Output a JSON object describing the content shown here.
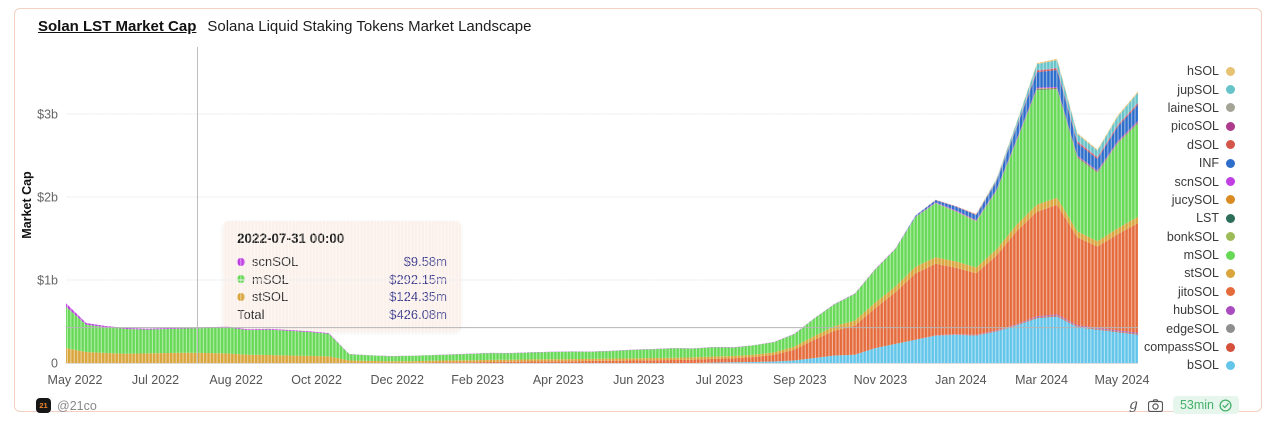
{
  "header": {
    "title": "Solan LST Market Cap",
    "subtitle": "Solana Liquid Staking Tokens Market Landscape"
  },
  "tooltip": {
    "title": "2022-07-31 00:00",
    "rows": [
      {
        "label": "scnSOL",
        "color": "#bf3fe3",
        "value": "$9.58m"
      },
      {
        "label": "mSOL",
        "color": "#67d957",
        "value": "$292.15m"
      },
      {
        "label": "stSOL",
        "color": "#d9a53c",
        "value": "$124.35m"
      }
    ],
    "total_label": "Total",
    "total_value": "$426.08m"
  },
  "footer": {
    "brand": "@21co",
    "logo_text": "21",
    "freshness": "53min"
  },
  "chart_data": {
    "type": "area",
    "stacked": true,
    "title": "Solan LST Market Cap",
    "subtitle": "Solana Liquid Staking Tokens Market Landscape",
    "ylabel": "Market Cap",
    "legend_position": "right",
    "grid": "horizontal-faint",
    "units": "USD millions",
    "ylim_m": [
      0,
      3800
    ],
    "y_ticks": [
      {
        "label": "$3b",
        "value": 3000
      },
      {
        "label": "$2b",
        "value": 2000
      },
      {
        "label": "$1b",
        "value": 1000
      },
      {
        "label": "0",
        "value": 0
      }
    ],
    "x_labels": [
      "May 2022",
      "Jul 2022",
      "Aug 2022",
      "Oct 2022",
      "Dec 2022",
      "Feb 2023",
      "Apr 2023",
      "Jun 2023",
      "Jul 2023",
      "Sep 2023",
      "Nov 2023",
      "Jan 2024",
      "Mar 2024",
      "May 2024"
    ],
    "x_range": [
      "2022-05-01",
      "2024-05-15"
    ],
    "n_points": 54,
    "crosshair": {
      "t": 6.5,
      "total_m": 426.08,
      "date": "2022-07-31 00:00"
    },
    "series_bottom_to_top": [
      {
        "name": "bSOL",
        "color": "#63c5ea",
        "from": 32,
        "values": [
          5,
          8,
          12,
          18,
          30,
          60,
          90,
          100,
          180,
          230,
          280,
          330,
          340,
          330,
          380,
          450,
          540,
          560,
          430,
          400,
          370,
          340
        ]
      },
      {
        "name": "compassSOL",
        "color": "#d5503a",
        "from": 43,
        "values": [
          2,
          3,
          4,
          5,
          6,
          8,
          9,
          9,
          8,
          8,
          9
        ]
      },
      {
        "name": "edgeSOL",
        "color": "#8e8e8e",
        "from": 43,
        "values": [
          1,
          2,
          3,
          4,
          5,
          6,
          7,
          7,
          6,
          6,
          7
        ]
      },
      {
        "name": "hubSOL",
        "color": "#aa4cc0",
        "from": 43,
        "values": [
          2,
          3,
          4,
          5,
          7,
          9,
          10,
          10,
          9,
          9,
          10
        ]
      },
      {
        "name": "jitoSOL",
        "color": "#e56b3c",
        "from": 18,
        "values": [
          5,
          8,
          10,
          12,
          15,
          18,
          20,
          22,
          25,
          28,
          30,
          33,
          36,
          40,
          45,
          50,
          60,
          80,
          130,
          220,
          300,
          350,
          480,
          620,
          800,
          860,
          800,
          740,
          900,
          1120,
          1260,
          1320,
          1060,
          980,
          1160,
          1320
        ]
      },
      {
        "name": "stSOL",
        "color": "#d9a53c",
        "from": 0,
        "values": [
          180,
          132,
          120,
          112,
          116,
          120,
          124,
          120,
          114,
          100,
          96,
          90,
          86,
          80,
          30,
          25,
          22,
          22,
          22,
          23,
          24,
          25,
          24,
          25,
          26,
          25,
          24,
          25,
          26,
          27,
          28,
          27,
          28,
          26,
          28,
          30,
          35,
          45,
          55,
          60,
          65,
          70,
          80,
          80,
          75,
          70,
          72,
          80,
          85,
          85,
          70,
          65,
          70,
          75
        ]
      },
      {
        "name": "mSOL",
        "color": "#67d957",
        "from": 0,
        "values": [
          500,
          330,
          310,
          298,
          286,
          290,
          292,
          302,
          312,
          296,
          306,
          298,
          288,
          272,
          76,
          66,
          60,
          63,
          66,
          70,
          76,
          82,
          78,
          84,
          86,
          90,
          86,
          92,
          102,
          106,
          112,
          106,
          112,
          102,
          112,
          122,
          152,
          212,
          262,
          322,
          400,
          452,
          600,
          650,
          600,
          552,
          700,
          1000,
          1380,
          1300,
          880,
          820,
          1020,
          1120
        ]
      },
      {
        "name": "bonkSOL",
        "color": "#9dbb57",
        "from": 43,
        "values": [
          1,
          2,
          3,
          4,
          5,
          6,
          7,
          7,
          6,
          6,
          7
        ]
      },
      {
        "name": "LST",
        "color": "#2c6e5a",
        "from": 43,
        "values": [
          2,
          3,
          4,
          5,
          6,
          8,
          9,
          9,
          8,
          8,
          9
        ]
      },
      {
        "name": "jucySOL",
        "color": "#d98b22",
        "from": 43,
        "values": [
          1,
          2,
          3,
          4,
          5,
          6,
          7,
          7,
          6,
          6,
          7
        ]
      },
      {
        "name": "scnSOL",
        "color": "#bf3fe3",
        "from": 0,
        "values": [
          40,
          20,
          15,
          12,
          11,
          10,
          9.6,
          10,
          10,
          9,
          9,
          9,
          8,
          8,
          3,
          3,
          2.5,
          2.5,
          2.5,
          2.5,
          3,
          3,
          3,
          3,
          3,
          3,
          3,
          3,
          3,
          3,
          3,
          3,
          3,
          3,
          3,
          3,
          4,
          4,
          5,
          5,
          6,
          6,
          7,
          8,
          8,
          9,
          9,
          10,
          11,
          11,
          10,
          10,
          11,
          12
        ]
      },
      {
        "name": "INF",
        "color": "#2e6ecb",
        "from": 42,
        "values": [
          10,
          25,
          45,
          60,
          95,
          140,
          185,
          205,
          150,
          140,
          175,
          195
        ]
      },
      {
        "name": "dSOL",
        "color": "#d4564a",
        "from": 43,
        "values": [
          2,
          3,
          5,
          7,
          9,
          12,
          14,
          14,
          12,
          12,
          14
        ]
      },
      {
        "name": "picoSOL",
        "color": "#ad3a8d",
        "from": 43,
        "values": [
          1,
          2,
          3,
          4,
          5,
          7,
          8,
          8,
          7,
          7,
          8
        ]
      },
      {
        "name": "laineSOL",
        "color": "#a3a396",
        "from": 43,
        "values": [
          1,
          2,
          3,
          4,
          5,
          6,
          7,
          7,
          6,
          6,
          7
        ]
      },
      {
        "name": "jupSOL",
        "color": "#66c3c9",
        "from": 46,
        "values": [
          15,
          40,
          70,
          90,
          80,
          75,
          95,
          115
        ]
      },
      {
        "name": "hSOL",
        "color": "#e7c272",
        "from": 45,
        "values": [
          3,
          6,
          10,
          14,
          16,
          14,
          13,
          15,
          17
        ]
      }
    ]
  }
}
